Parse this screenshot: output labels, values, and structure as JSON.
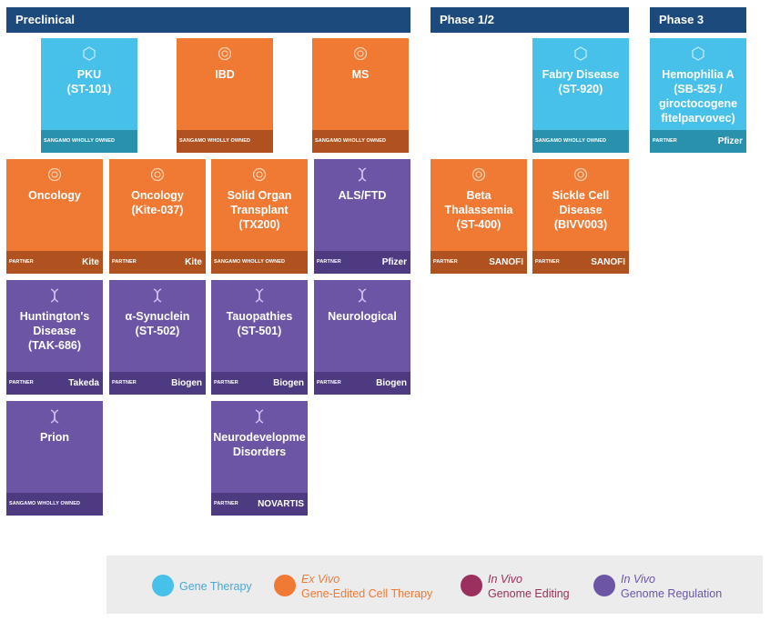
{
  "phases": [
    "Preclinical",
    "Phase 1/2",
    "Phase 3"
  ],
  "cards": [
    {
      "name": "PKU\n(ST-101)",
      "type": "blue",
      "footer": "SANGAMO WHOLLY OWNED",
      "logo": ""
    },
    {
      "name": "IBD",
      "type": "orange",
      "footer": "SANGAMO WHOLLY OWNED",
      "logo": ""
    },
    {
      "name": "MS",
      "type": "orange",
      "footer": "SANGAMO WHOLLY OWNED",
      "logo": ""
    },
    {
      "name": "Fabry Disease\n(ST-920)",
      "type": "blue",
      "footer": "SANGAMO WHOLLY OWNED",
      "logo": ""
    },
    {
      "name": "Hemophilia A\n(SB-525 /\ngiroctocogene\nfitelparvovec)",
      "type": "blue",
      "footer": "PARTNER",
      "logo": "Pfizer"
    },
    {
      "name": "Oncology",
      "type": "orange",
      "footer": "PARTNER",
      "logo": "Kite"
    },
    {
      "name": "Oncology\n(Kite-037)",
      "type": "orange",
      "footer": "PARTNER",
      "logo": "Kite"
    },
    {
      "name": "Solid Organ\nTransplant\n(TX200)",
      "type": "orange",
      "footer": "SANGAMO WHOLLY OWNED",
      "logo": ""
    },
    {
      "name": "ALS/FTD",
      "type": "purple",
      "footer": "PARTNER",
      "logo": "Pfizer"
    },
    {
      "name": "Beta\nThalassemia\n(ST-400)",
      "type": "orange",
      "footer": "PARTNER",
      "logo": "SANOFI"
    },
    {
      "name": "Sickle Cell\nDisease\n(BIVV003)",
      "type": "orange",
      "footer": "PARTNER",
      "logo": "SANOFI"
    },
    {
      "name": "Huntington's\nDisease\n(TAK-686)",
      "type": "purple",
      "footer": "PARTNER",
      "logo": "Takeda"
    },
    {
      "name": "α-Synuclein\n(ST-502)",
      "type": "purple",
      "footer": "PARTNER",
      "logo": "Biogen"
    },
    {
      "name": "Tauopathies\n(ST-501)",
      "type": "purple",
      "footer": "PARTNER",
      "logo": "Biogen"
    },
    {
      "name": "Neurological",
      "type": "purple",
      "footer": "PARTNER",
      "logo": "Biogen"
    },
    {
      "name": "Prion",
      "type": "purple",
      "footer": "SANGAMO WHOLLY OWNED",
      "logo": ""
    },
    {
      "name": "Neurodevelopme\nDisorders",
      "type": "purple",
      "footer": "PARTNER",
      "logo": "NOVARTIS"
    }
  ],
  "legend": [
    {
      "line1": "",
      "line2": "Gene Therapy",
      "color": "#47c1e9",
      "icon": "gene-therapy-icon"
    },
    {
      "line1": "Ex Vivo",
      "line2": "Gene-Edited Cell Therapy",
      "color": "#f07934",
      "icon": "cell-therapy-icon"
    },
    {
      "line1": "In Vivo",
      "line2": "Genome Editing",
      "color": "#9b2f5d",
      "icon": "scissors-icon"
    },
    {
      "line1": "In Vivo",
      "line2": "Genome Regulation",
      "color": "#6c55a5",
      "icon": "dna-icon"
    }
  ]
}
